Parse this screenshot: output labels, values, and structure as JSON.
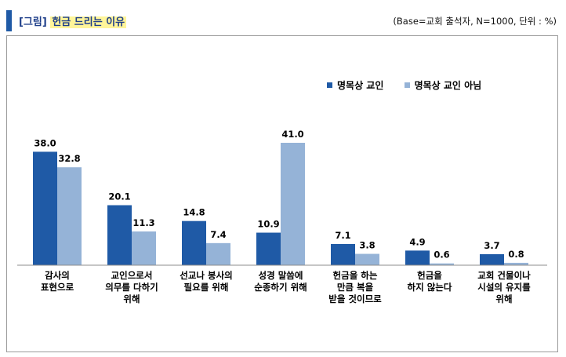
{
  "header": {
    "prefix": "[그림]",
    "title": "헌금 드리는 이유",
    "base_note": "(Base=교회 출석자, N=1000, 단위 : %)"
  },
  "chart_data": {
    "type": "bar",
    "title": "헌금 드리는 이유",
    "ylabel": "%",
    "ylim": [
      0,
      45
    ],
    "grid": false,
    "legend_position": "top-right",
    "categories": [
      [
        "감사의",
        "표현으로"
      ],
      [
        "교인으로서",
        "의무를 다하기",
        "위해"
      ],
      [
        "선교나 봉사의",
        "필요를 위해"
      ],
      [
        "성경 말씀에",
        "순종하기 위해"
      ],
      [
        "헌금을 하는",
        "만큼 복을",
        "받을 것이므로"
      ],
      [
        "헌금을",
        "하지 않는다"
      ],
      [
        "교회 건물이나",
        "시설의 유지를",
        "위해"
      ]
    ],
    "series": [
      {
        "name": "명목상 교인",
        "color": "#1f5aa6",
        "values": [
          38.0,
          20.1,
          14.8,
          10.9,
          7.1,
          4.9,
          3.7
        ]
      },
      {
        "name": "명목상 교인 아님",
        "color": "#95b3d7",
        "values": [
          32.8,
          11.3,
          7.4,
          41.0,
          3.8,
          0.6,
          0.8
        ]
      }
    ]
  }
}
